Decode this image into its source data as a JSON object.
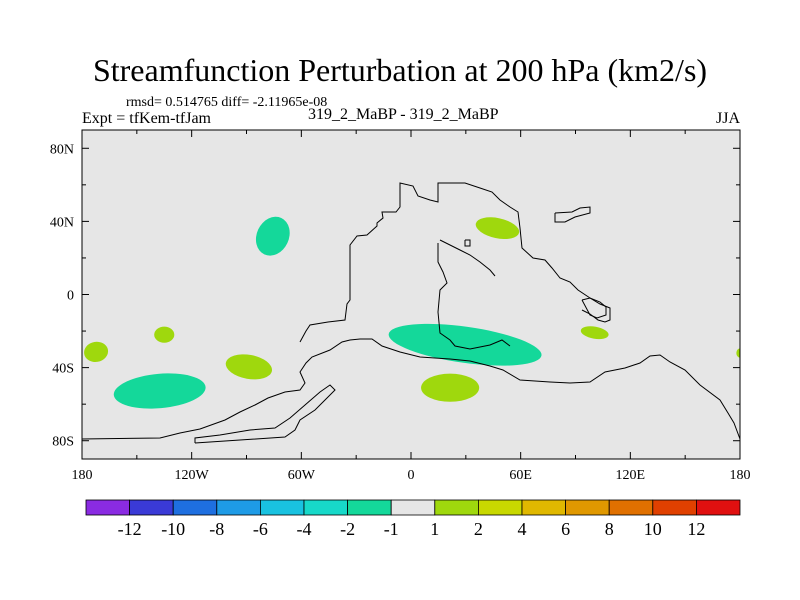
{
  "chart_data": {
    "type": "contour-map",
    "title": "Streamfunction Perturbation at 200 hPa (km2/s)",
    "stats_text": "rmsd= 0.514765 diff= -2.11965e-08",
    "expt_label": "Expt = tfKem-tfJam",
    "case_label": "319_2_MaBP - 319_2_MaBP",
    "season_label": "JJA",
    "xlim": [
      -180,
      180
    ],
    "ylim": [
      -90,
      90
    ],
    "x_ticks": [
      {
        "value": -180,
        "label": "180"
      },
      {
        "value": -120,
        "label": "120W"
      },
      {
        "value": -60,
        "label": "60W"
      },
      {
        "value": 0,
        "label": "0"
      },
      {
        "value": 60,
        "label": "60E"
      },
      {
        "value": 120,
        "label": "120E"
      },
      {
        "value": 180,
        "label": "180"
      }
    ],
    "y_ticks": [
      {
        "value": 80,
        "label": "80N"
      },
      {
        "value": 40,
        "label": "40N"
      },
      {
        "value": 0,
        "label": "0"
      },
      {
        "value": -40,
        "label": "40S"
      },
      {
        "value": -80,
        "label": "80S"
      }
    ],
    "background_color": "#e6e6e6",
    "colorbar": {
      "colors": [
        "#8a2be2",
        "#3a3ad6",
        "#1e6fe0",
        "#1e9be6",
        "#19c2e0",
        "#17d9c9",
        "#14d89a",
        "#e6e6e6",
        "#9fd80d",
        "#c8d800",
        "#e0b800",
        "#e09800",
        "#e07000",
        "#e04000",
        "#e01010"
      ],
      "labels": [
        "-12",
        "-10",
        "-8",
        "-6",
        "-4",
        "-2",
        "-1",
        "1",
        "2",
        "4",
        "6",
        "8",
        "10",
        "12"
      ]
    },
    "features": [
      {
        "sign": "positive",
        "color": "#9fd80d",
        "lon": -88.7,
        "lat": -39.6,
        "rx": 12.8,
        "ry": 6.6,
        "rot": 10
      },
      {
        "sign": "positive",
        "color": "#9fd80d",
        "lon": -172.3,
        "lat": -31.4,
        "rx": 6.6,
        "ry": 5.5,
        "rot": -10
      },
      {
        "sign": "positive",
        "color": "#9fd80d",
        "lon": -135.0,
        "lat": -22.0,
        "rx": 5.5,
        "ry": 4.4,
        "rot": 0
      },
      {
        "sign": "positive",
        "color": "#9fd80d",
        "lon": 47.3,
        "lat": 36.3,
        "rx": 12.1,
        "ry": 5.5,
        "rot": 12
      },
      {
        "sign": "positive",
        "color": "#9fd80d",
        "lon": 21.4,
        "lat": -51.0,
        "rx": 15.9,
        "ry": 7.7,
        "rot": 0
      },
      {
        "sign": "positive",
        "color": "#9fd80d",
        "lon": 100.5,
        "lat": -20.9,
        "rx": 7.7,
        "ry": 3.3,
        "rot": 10
      },
      {
        "sign": "positive",
        "color": "#9fd80d",
        "lon": 180.0,
        "lat": -32.0,
        "rx": 2.0,
        "ry": 2.5,
        "rot": 0
      },
      {
        "sign": "negative",
        "color": "#14d89a",
        "lon": -75.6,
        "lat": 31.9,
        "rx": 8.8,
        "ry": 11.0,
        "rot": 25
      },
      {
        "sign": "negative",
        "color": "#14d89a",
        "lon": -137.5,
        "lat": -52.8,
        "rx": 25.2,
        "ry": 9.4,
        "rot": -5
      },
      {
        "sign": "negative",
        "color": "#14d89a",
        "lon": 29.6,
        "lat": -27.5,
        "rx": 42.2,
        "ry": 9.9,
        "rot": 8
      }
    ]
  }
}
